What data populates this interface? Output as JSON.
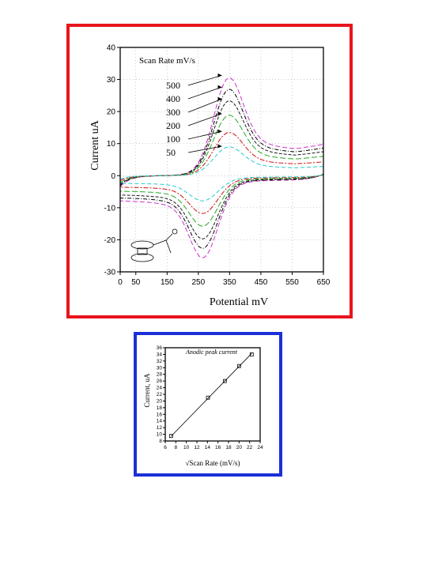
{
  "chart_data": [
    {
      "type": "line",
      "title": "",
      "xlabel": "Potential mV",
      "ylabel": "Current uA",
      "xlim": [
        0,
        650
      ],
      "ylim": [
        -30,
        40
      ],
      "xticks": [
        "0",
        "50",
        "150",
        "250",
        "350",
        "450",
        "550",
        "650"
      ],
      "yticks": [
        "-30",
        "-20",
        "-10",
        "0",
        "10",
        "20",
        "30",
        "40"
      ],
      "annotation": "Scan Rate mV/s",
      "grid": true,
      "legend_position": "top-left",
      "series": [
        {
          "name": "500",
          "color": "#cc33cc",
          "ipa": 34,
          "ipc": -26
        },
        {
          "name": "400",
          "color": "#000000",
          "ipa": 30,
          "ipc": -23
        },
        {
          "name": "300",
          "color": "#1a1a1a",
          "ipa": 26,
          "ipc": -20
        },
        {
          "name": "200",
          "color": "#22aa22",
          "ipa": 21,
          "ipc": -16
        },
        {
          "name": "100",
          "color": "#cc1111",
          "ipa": 15,
          "ipc": -12
        },
        {
          "name": "50",
          "color": "#22cccc",
          "ipa": 10,
          "ipc": -8
        }
      ],
      "anodic_peak_potential": 345,
      "cathodic_peak_potential": 265
    },
    {
      "type": "scatter",
      "title": "",
      "xlabel": "√Scan Rate (mV/s)",
      "ylabel": "Current, uA",
      "annotation": "Anodic peak current",
      "xlim": [
        6,
        24
      ],
      "ylim": [
        8,
        36
      ],
      "xticks": [
        "6",
        "8",
        "10",
        "12",
        "14",
        "16",
        "18",
        "20",
        "22",
        "24"
      ],
      "yticks": [
        "8",
        "10",
        "12",
        "14",
        "16",
        "18",
        "20",
        "22",
        "24",
        "26",
        "28",
        "30",
        "32",
        "34",
        "36"
      ],
      "points": [
        {
          "x": 7.1,
          "y": 9.5
        },
        {
          "x": 14.1,
          "y": 21.0
        },
        {
          "x": 17.3,
          "y": 26.0
        },
        {
          "x": 20.0,
          "y": 30.5
        },
        {
          "x": 22.4,
          "y": 34.0
        }
      ],
      "fit_line": [
        [
          7.1,
          9.4
        ],
        [
          22.4,
          34.3
        ]
      ]
    }
  ]
}
